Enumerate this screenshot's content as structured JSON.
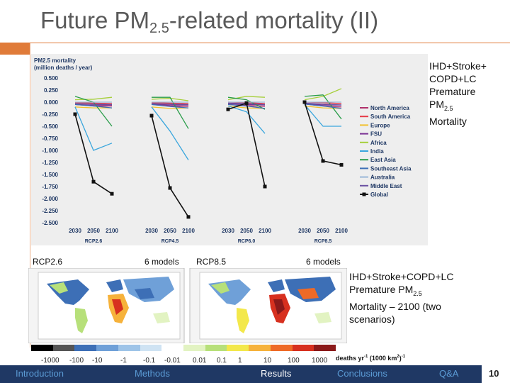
{
  "slide": {
    "title_main": "Future PM",
    "title_sub": "2.5",
    "title_rest": "-related mortality (II)",
    "page_number": "10"
  },
  "side_caption": {
    "line1": "IHD+Stroke+",
    "line2": "COPD+LC",
    "line3": "Premature",
    "line4": "PM",
    "line4_sub": "2.5",
    "line5": "Mortality"
  },
  "chart_data": {
    "type": "line",
    "title": "PM2.5 mortality",
    "ylabel": "(million deaths / year)",
    "ylim": [
      -2.5,
      0.5
    ],
    "yticks": [
      "0.500",
      "0.250",
      "0.000",
      "-0.250",
      "-0.500",
      "-0.750",
      "-1.000",
      "-1.250",
      "-1.500",
      "-1.750",
      "-2.000",
      "-2.250",
      "-2.500"
    ],
    "x": [
      "2030",
      "2050",
      "2100"
    ],
    "panels": [
      "RCP2.6",
      "RCP4.5",
      "RCP6.0",
      "RCP8.5"
    ],
    "series": [
      {
        "name": "North America",
        "color": "#b0306a",
        "values": [
          [
            -0.05,
            -0.08,
            -0.08
          ],
          [
            -0.05,
            -0.08,
            -0.09
          ],
          [
            -0.05,
            -0.07,
            -0.09
          ],
          [
            -0.04,
            -0.08,
            -0.1
          ]
        ]
      },
      {
        "name": "South America",
        "color": "#e63946",
        "values": [
          [
            -0.01,
            -0.02,
            -0.03
          ],
          [
            -0.01,
            -0.02,
            -0.03
          ],
          [
            0.0,
            -0.01,
            -0.03
          ],
          [
            0.0,
            -0.01,
            -0.03
          ]
        ]
      },
      {
        "name": "Europe",
        "color": "#f2c12e",
        "values": [
          [
            -0.1,
            -0.12,
            -0.12
          ],
          [
            -0.1,
            -0.13,
            -0.12
          ],
          [
            -0.08,
            -0.12,
            -0.13
          ],
          [
            -0.08,
            -0.12,
            -0.13
          ]
        ]
      },
      {
        "name": "FSU",
        "color": "#7b3294",
        "values": [
          [
            -0.05,
            -0.06,
            -0.06
          ],
          [
            -0.04,
            -0.06,
            -0.06
          ],
          [
            -0.03,
            -0.05,
            -0.06
          ],
          [
            -0.03,
            -0.06,
            -0.06
          ]
        ]
      },
      {
        "name": "Africa",
        "color": "#a6cf3a",
        "values": [
          [
            0.05,
            0.06,
            0.1
          ],
          [
            0.06,
            0.08,
            0.03
          ],
          [
            0.05,
            0.12,
            0.1
          ],
          [
            0.05,
            0.12,
            0.28
          ]
        ]
      },
      {
        "name": "India",
        "color": "#3aa6dd",
        "values": [
          [
            -0.1,
            -1.0,
            -0.85
          ],
          [
            -0.1,
            -0.6,
            -1.2
          ],
          [
            -0.08,
            -0.2,
            -0.65
          ],
          [
            -0.05,
            -0.5,
            -0.5
          ]
        ]
      },
      {
        "name": "East Asia",
        "color": "#2a9d4a",
        "values": [
          [
            0.12,
            0.0,
            -0.5
          ],
          [
            0.1,
            0.1,
            -0.55
          ],
          [
            0.1,
            0.05,
            -0.15
          ],
          [
            0.12,
            0.15,
            -0.35
          ]
        ]
      },
      {
        "name": "Southeast Asia",
        "color": "#3d6fb6",
        "values": [
          [
            -0.05,
            -0.08,
            -0.12
          ],
          [
            -0.05,
            -0.09,
            -0.12
          ],
          [
            -0.05,
            -0.08,
            -0.13
          ],
          [
            -0.04,
            -0.08,
            -0.13
          ]
        ]
      },
      {
        "name": "Australia",
        "color": "#9ab7d8",
        "values": [
          [
            0.0,
            0.0,
            0.0
          ],
          [
            0.0,
            0.0,
            0.0
          ],
          [
            0.0,
            0.0,
            0.0
          ],
          [
            0.0,
            0.0,
            0.0
          ]
        ]
      },
      {
        "name": "Middle East",
        "color": "#6a51a3",
        "values": [
          [
            -0.03,
            -0.04,
            -0.05
          ],
          [
            -0.03,
            -0.04,
            -0.05
          ],
          [
            -0.02,
            -0.03,
            -0.05
          ],
          [
            -0.02,
            -0.04,
            -0.06
          ]
        ]
      },
      {
        "name": "Global",
        "color": "#111111",
        "marker": true,
        "values": [
          [
            -0.25,
            -1.65,
            -1.9
          ],
          [
            -0.28,
            -1.78,
            -2.38
          ],
          [
            -0.15,
            -0.02,
            -1.75
          ],
          [
            0.0,
            -1.22,
            -1.3
          ]
        ]
      }
    ],
    "legend_position": "right",
    "grid": false
  },
  "scenarios": {
    "left_name": "RCP2.6",
    "left_models": "6 models",
    "right_name": "RCP8.5",
    "right_models": "6 models"
  },
  "map_caption": {
    "line1": "IHD+Stroke+COPD+LC",
    "line2": "Premature PM",
    "line2_sub": "2.5",
    "line3": "Mortality – 2100 (two",
    "line4": "scenarios)"
  },
  "colorbar": {
    "colors": [
      "#000000",
      "#555555",
      "#3d6fb6",
      "#6fa0d8",
      "#9ec4e8",
      "#cfe3f3",
      "#ffffff",
      "#e2f3c2",
      "#b7e07a",
      "#f3e84b",
      "#f6b23b",
      "#ee6a27",
      "#d7301f",
      "#8b1a1a"
    ],
    "ticks": [
      "-1000",
      "-100",
      "-10",
      "-1",
      "-0.1",
      "-0.01",
      "0.01",
      "0.1",
      "1",
      "10",
      "100",
      "1000"
    ],
    "units": "deaths yr",
    "units_sup1": "-1",
    "units_mid": " (1000 km",
    "units_sup2": "2",
    "units_end": ")",
    "units_sup3": "-1"
  },
  "nav": {
    "introduction": "Introduction",
    "methods": "Methods",
    "results": "Results",
    "conclusions": "Conclusions",
    "qa": "Q&A"
  },
  "maps": {
    "ocean": "#ffffff",
    "land": "#b7e07a"
  }
}
